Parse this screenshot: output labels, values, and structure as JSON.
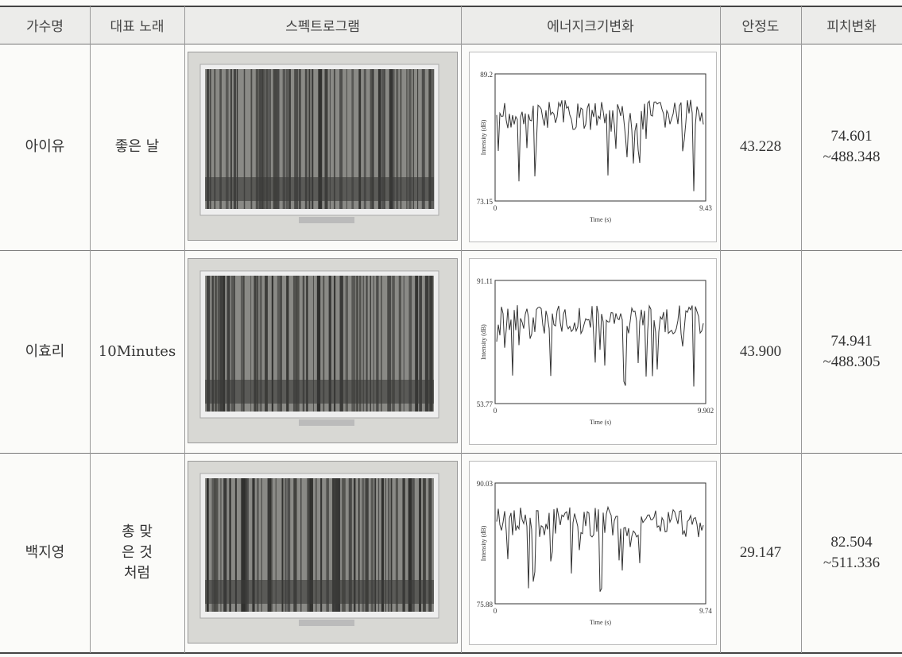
{
  "table": {
    "header": [
      "가수명",
      "대표 노래",
      "스펙트로그램",
      "에너지크기변화",
      "안정도",
      "피치변화"
    ],
    "rows": [
      {
        "singer": "아이유",
        "song": "좋은 날",
        "plot": {
          "ymax": "89.2",
          "ymin": "73.15",
          "xmin": "0",
          "xmax": "9.43",
          "ylabel": "Intensity (dB)",
          "xlabel": "Time (s)"
        },
        "stability": "43.228",
        "pitch": [
          "74.601",
          "~488.348"
        ]
      },
      {
        "singer": "이효리",
        "song": "10Minutes",
        "plot": {
          "ymax": "91.11",
          "ymin": "53.77",
          "xmin": "0",
          "xmax": "9.902",
          "ylabel": "Intensity (dB)",
          "xlabel": "Time (s)"
        },
        "stability": "43.900",
        "pitch": [
          "74.941",
          "~488.305"
        ]
      },
      {
        "singer": "백지영",
        "song": "총 맞은 것처럼",
        "plot": {
          "ymax": "90.03",
          "ymin": "75.88",
          "xmin": "0",
          "xmax": "9.74",
          "ylabel": "Intensity (dB)",
          "xlabel": "Time (s)"
        },
        "stability": "29.147",
        "pitch": [
          "82.504",
          "~511.336"
        ]
      }
    ]
  }
}
